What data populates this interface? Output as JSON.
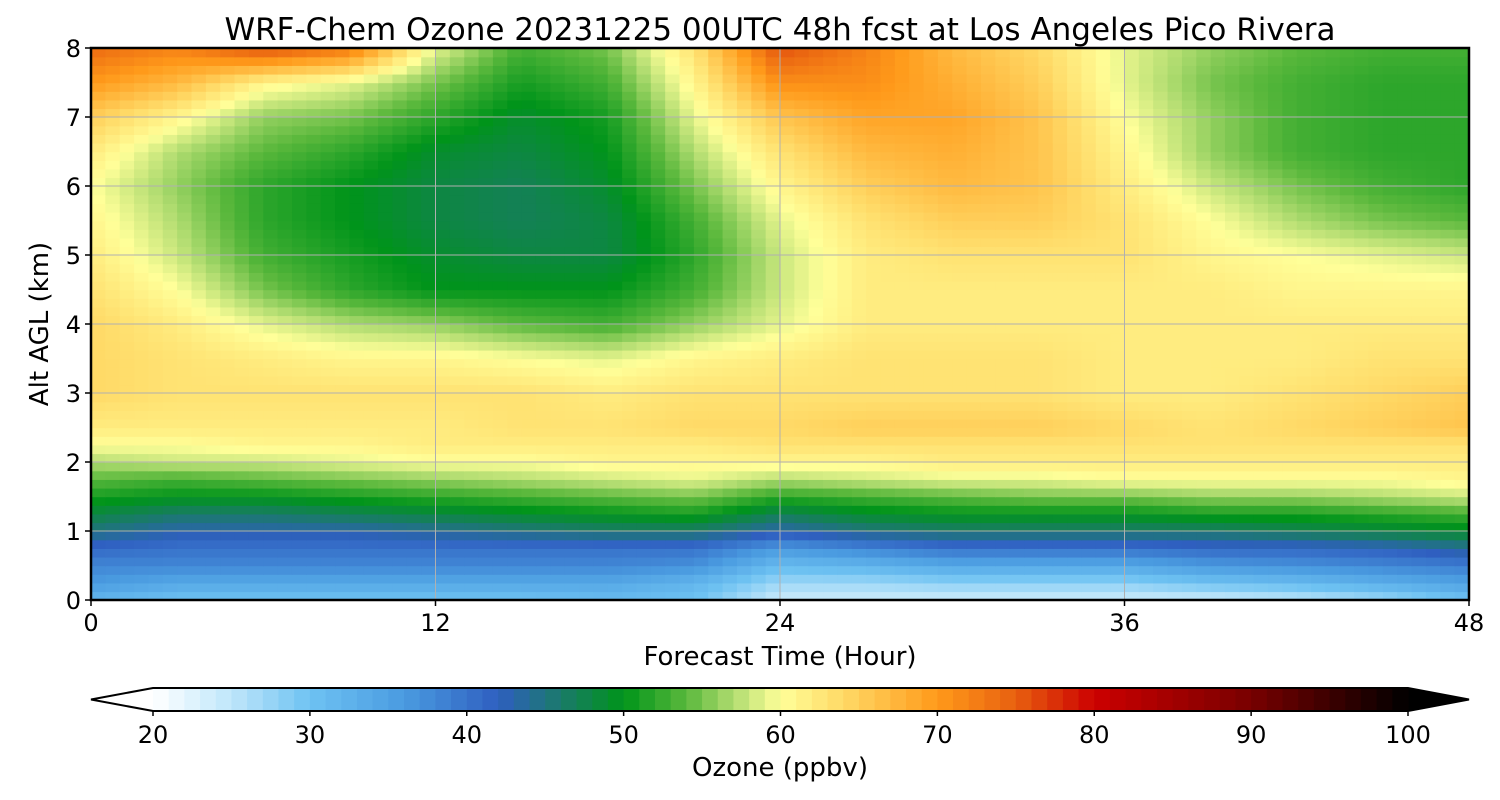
{
  "chart_data": {
    "type": "heatmap",
    "title": "WRF-Chem Ozone  20231225 00UTC 48h fcst at Los Angeles Pico Rivera",
    "xlabel": "Forecast Time (Hour)",
    "ylabel": "Alt AGL (km)",
    "xlim": [
      0,
      48
    ],
    "ylim": [
      0,
      8
    ],
    "xticks": [
      0,
      12,
      24,
      36,
      48
    ],
    "yticks": [
      0,
      1,
      2,
      3,
      4,
      5,
      6,
      7,
      8
    ],
    "grid": true,
    "x": [
      0,
      3,
      6,
      9,
      12,
      15,
      18,
      21,
      24,
      27,
      30,
      33,
      36,
      39,
      42,
      45,
      48
    ],
    "y": [
      0,
      0.25,
      0.5,
      0.75,
      1,
      1.25,
      1.5,
      1.75,
      2,
      2.25,
      2.5,
      3,
      3.5,
      4,
      4.5,
      5,
      5.5,
      6,
      6.5,
      7,
      7.5,
      8
    ],
    "z": [
      [
        32,
        30,
        30,
        30,
        30,
        30,
        31,
        30,
        24,
        24,
        24,
        24,
        24,
        24,
        25,
        27,
        30
      ],
      [
        36,
        34,
        34,
        34,
        34,
        34,
        34,
        32,
        27,
        27,
        28,
        28,
        28,
        30,
        31,
        33,
        35
      ],
      [
        38,
        38,
        38,
        38,
        38,
        38,
        38,
        37,
        31,
        32,
        34,
        34,
        34,
        36,
        37,
        38,
        39
      ],
      [
        41,
        40,
        40,
        40,
        40,
        40,
        40,
        40,
        36,
        38,
        40,
        40,
        40,
        41,
        41,
        42,
        44
      ],
      [
        45,
        43,
        43,
        43,
        44,
        45,
        46,
        46,
        43,
        45,
        46,
        46,
        46,
        46,
        47,
        48,
        49
      ],
      [
        48,
        46,
        46,
        47,
        48,
        49,
        50,
        51,
        47,
        49,
        50,
        50,
        50,
        51,
        51,
        52,
        53
      ],
      [
        51,
        50,
        50,
        51,
        52,
        53,
        54,
        55,
        52,
        53,
        54,
        55,
        55,
        56,
        56,
        57,
        58
      ],
      [
        54,
        53,
        54,
        55,
        56,
        57,
        58,
        59,
        57,
        58,
        59,
        59,
        60,
        60,
        60,
        60,
        61
      ],
      [
        57,
        58,
        58,
        59,
        60,
        60,
        61,
        61,
        61,
        61,
        62,
        62,
        62,
        62,
        62,
        62,
        62
      ],
      [
        60,
        60,
        61,
        61,
        62,
        62,
        62,
        62,
        63,
        63,
        63,
        63,
        63,
        63,
        63,
        63,
        63
      ],
      [
        62,
        62,
        62,
        62,
        62,
        63,
        63,
        64,
        64,
        65,
        65,
        65,
        64,
        63,
        64,
        65,
        66
      ],
      [
        64,
        63,
        63,
        63,
        63,
        63,
        62,
        63,
        63,
        63,
        63,
        63,
        62,
        62,
        63,
        64,
        65
      ],
      [
        64,
        63,
        62,
        61,
        61,
        60,
        59,
        61,
        62,
        63,
        63,
        63,
        62,
        62,
        62,
        63,
        63
      ],
      [
        64,
        62,
        59,
        57,
        56,
        54,
        53,
        56,
        59,
        62,
        62,
        62,
        62,
        62,
        62,
        62,
        62
      ],
      [
        63,
        60,
        55,
        52,
        50,
        50,
        50,
        53,
        58,
        62,
        62,
        62,
        62,
        62,
        61,
        61,
        61
      ],
      [
        62,
        58,
        53,
        51,
        49,
        48,
        48,
        52,
        58,
        62,
        63,
        63,
        63,
        61,
        60,
        59,
        58
      ],
      [
        61,
        57,
        52,
        50,
        48,
        47,
        48,
        53,
        59,
        63,
        65,
        65,
        63,
        60,
        57,
        55,
        54
      ],
      [
        60,
        56,
        52,
        50,
        48,
        47,
        49,
        55,
        61,
        65,
        67,
        66,
        62,
        58,
        55,
        53,
        52
      ],
      [
        62,
        57,
        54,
        52,
        49,
        48,
        50,
        57,
        63,
        67,
        68,
        66,
        61,
        56,
        53,
        52,
        52
      ],
      [
        65,
        61,
        56,
        55,
        52,
        49,
        51,
        59,
        66,
        69,
        69,
        66,
        60,
        56,
        53,
        52,
        52
      ],
      [
        70,
        67,
        61,
        59,
        55,
        51,
        53,
        61,
        71,
        71,
        68,
        65,
        59,
        55,
        53,
        52,
        52
      ],
      [
        74,
        72,
        76,
        73,
        59,
        53,
        55,
        63,
        76,
        72,
        67,
        64,
        59,
        56,
        54,
        53,
        53
      ]
    ],
    "colorbar": {
      "label": "Ozone  (ppbv)",
      "min": 20,
      "max": 100,
      "ticks": [
        20,
        30,
        40,
        50,
        60,
        70,
        80,
        90,
        100
      ],
      "extend": "both",
      "stops": [
        [
          20,
          "#ffffff"
        ],
        [
          25,
          "#bfe6fa"
        ],
        [
          30,
          "#6ec2f2"
        ],
        [
          36,
          "#4a9be0"
        ],
        [
          42,
          "#2f5fc0"
        ],
        [
          46,
          "#1a7a6a"
        ],
        [
          50,
          "#00941a"
        ],
        [
          54,
          "#5ab83c"
        ],
        [
          57,
          "#b0dc70"
        ],
        [
          60,
          "#ffff99"
        ],
        [
          64,
          "#ffd966"
        ],
        [
          70,
          "#ff9a1a"
        ],
        [
          75,
          "#e86010"
        ],
        [
          80,
          "#cc0000"
        ],
        [
          90,
          "#780000"
        ],
        [
          100,
          "#000000"
        ]
      ]
    }
  }
}
